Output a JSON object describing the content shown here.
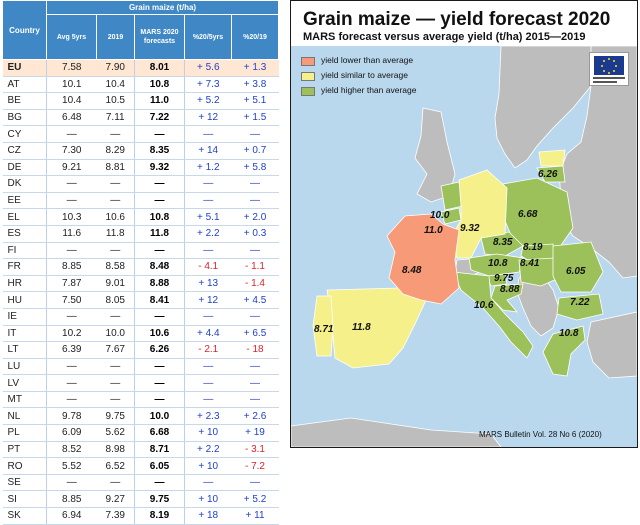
{
  "table": {
    "group_header": "Grain maize (t/ha)",
    "columns": [
      "Country",
      "Avg 5yrs",
      "2019",
      "MARS 2020 forecasts",
      "%20/5yrs",
      "%20/19"
    ],
    "rows": [
      [
        "EU",
        "7.58",
        "7.90",
        "8.01",
        "+ 5.6",
        "+ 1.3"
      ],
      [
        "AT",
        "10.1",
        "10.4",
        "10.8",
        "+ 7.3",
        "+ 3.8"
      ],
      [
        "BE",
        "10.4",
        "10.5",
        "11.0",
        "+ 5.2",
        "+ 5.1"
      ],
      [
        "BG",
        "6.48",
        "7.11",
        "7.22",
        "+ 12",
        "+ 1.5"
      ],
      [
        "CY",
        "—",
        "—",
        "—",
        "—",
        "—"
      ],
      [
        "CZ",
        "7.30",
        "8.29",
        "8.35",
        "+ 14",
        "+ 0.7"
      ],
      [
        "DE",
        "9.21",
        "8.81",
        "9.32",
        "+ 1.2",
        "+ 5.8"
      ],
      [
        "DK",
        "—",
        "—",
        "—",
        "—",
        "—"
      ],
      [
        "EE",
        "—",
        "—",
        "—",
        "—",
        "—"
      ],
      [
        "EL",
        "10.3",
        "10.6",
        "10.8",
        "+ 5.1",
        "+ 2.0"
      ],
      [
        "ES",
        "11.6",
        "11.8",
        "11.8",
        "+ 2.2",
        "+ 0.3"
      ],
      [
        "FI",
        "—",
        "—",
        "—",
        "—",
        "—"
      ],
      [
        "FR",
        "8.85",
        "8.58",
        "8.48",
        "- 4.1",
        "- 1.1"
      ],
      [
        "HR",
        "7.87",
        "9.01",
        "8.88",
        "+ 13",
        "- 1.4"
      ],
      [
        "HU",
        "7.50",
        "8.05",
        "8.41",
        "+ 12",
        "+ 4.5"
      ],
      [
        "IE",
        "—",
        "—",
        "—",
        "—",
        "—"
      ],
      [
        "IT",
        "10.2",
        "10.0",
        "10.6",
        "+ 4.4",
        "+ 6.5"
      ],
      [
        "LT",
        "6.39",
        "7.67",
        "6.26",
        "- 2.1",
        "- 18"
      ],
      [
        "LU",
        "—",
        "—",
        "—",
        "—",
        "—"
      ],
      [
        "LV",
        "—",
        "—",
        "—",
        "—",
        "—"
      ],
      [
        "MT",
        "—",
        "—",
        "—",
        "—",
        "—"
      ],
      [
        "NL",
        "9.78",
        "9.75",
        "10.0",
        "+ 2.3",
        "+ 2.6"
      ],
      [
        "PL",
        "6.09",
        "5.62",
        "6.68",
        "+ 10",
        "+ 19"
      ],
      [
        "PT",
        "8.52",
        "8.98",
        "8.71",
        "+ 2.2",
        "- 3.1"
      ],
      [
        "RO",
        "5.52",
        "6.52",
        "6.05",
        "+ 10",
        "- 7.2"
      ],
      [
        "SE",
        "—",
        "—",
        "—",
        "—",
        "—"
      ],
      [
        "SI",
        "8.85",
        "9.27",
        "9.75",
        "+ 10",
        "+ 5.2"
      ],
      [
        "SK",
        "6.94",
        "7.39",
        "8.19",
        "+ 18",
        "+ 11"
      ]
    ]
  },
  "map": {
    "title": "Grain maize — yield forecast 2020",
    "subtitle": "MARS forecast versus average yield (t/ha) 2015—2019",
    "legend": [
      {
        "label": "yield lower than average",
        "color": "#f79a78"
      },
      {
        "label": "yield similar to average",
        "color": "#f5f08a"
      },
      {
        "label": "yield higher than average",
        "color": "#9cc15a"
      }
    ],
    "labels": [
      {
        "text": "6.26"
      },
      {
        "text": "10.0"
      },
      {
        "text": "11.0"
      },
      {
        "text": "9.32"
      },
      {
        "text": "6.68"
      },
      {
        "text": "8.35"
      },
      {
        "text": "8.19"
      },
      {
        "text": "10.8"
      },
      {
        "text": "8.41"
      },
      {
        "text": "9.75"
      },
      {
        "text": "8.88"
      },
      {
        "text": "6.05"
      },
      {
        "text": "8.48"
      },
      {
        "text": "10.6"
      },
      {
        "text": "7.22"
      },
      {
        "text": "8.71"
      },
      {
        "text": "11.8"
      },
      {
        "text": "10.8"
      }
    ],
    "footer": "MARS Bulletin Vol. 28 No 6 (2020)",
    "colors": {
      "sea": "#b9d8ee",
      "nonEU": "#bdbdbd",
      "border": "#ffffff"
    }
  },
  "chart_data": [
    {
      "type": "table",
      "title": "Grain maize (t/ha)",
      "columns": [
        "Country",
        "Avg 5yrs",
        "2019",
        "MARS 2020 forecasts",
        "%20/5yrs",
        "%20/19"
      ],
      "rows": [
        [
          "EU",
          7.58,
          7.9,
          8.01,
          5.6,
          1.3
        ],
        [
          "AT",
          10.1,
          10.4,
          10.8,
          7.3,
          3.8
        ],
        [
          "BE",
          10.4,
          10.5,
          11.0,
          5.2,
          5.1
        ],
        [
          "BG",
          6.48,
          7.11,
          7.22,
          12,
          1.5
        ],
        [
          "CZ",
          7.3,
          8.29,
          8.35,
          14,
          0.7
        ],
        [
          "DE",
          9.21,
          8.81,
          9.32,
          1.2,
          5.8
        ],
        [
          "EL",
          10.3,
          10.6,
          10.8,
          5.1,
          2.0
        ],
        [
          "ES",
          11.6,
          11.8,
          11.8,
          2.2,
          0.3
        ],
        [
          "FR",
          8.85,
          8.58,
          8.48,
          -4.1,
          -1.1
        ],
        [
          "HR",
          7.87,
          9.01,
          8.88,
          13,
          -1.4
        ],
        [
          "HU",
          7.5,
          8.05,
          8.41,
          12,
          4.5
        ],
        [
          "IT",
          10.2,
          10.0,
          10.6,
          4.4,
          6.5
        ],
        [
          "LT",
          6.39,
          7.67,
          6.26,
          -2.1,
          -18
        ],
        [
          "NL",
          9.78,
          9.75,
          10.0,
          2.3,
          2.6
        ],
        [
          "PL",
          6.09,
          5.62,
          6.68,
          10,
          19
        ],
        [
          "PT",
          8.52,
          8.98,
          8.71,
          2.2,
          -3.1
        ],
        [
          "RO",
          5.52,
          6.52,
          6.05,
          10,
          -7.2
        ],
        [
          "SI",
          8.85,
          9.27,
          9.75,
          10,
          5.2
        ],
        [
          "SK",
          6.94,
          7.39,
          8.19,
          18,
          11
        ]
      ]
    },
    {
      "type": "map",
      "title": "Grain maize — yield forecast 2020",
      "subtitle": "MARS forecast versus average yield (t/ha) 2015—2019",
      "legend": [
        "yield lower than average",
        "yield similar to average",
        "yield higher than average"
      ],
      "values": [
        6.26,
        10.0,
        11.0,
        9.32,
        6.68,
        8.35,
        8.19,
        10.8,
        8.41,
        9.75,
        8.88,
        6.05,
        8.48,
        10.6,
        7.22,
        8.71,
        11.8,
        10.8
      ]
    }
  ]
}
